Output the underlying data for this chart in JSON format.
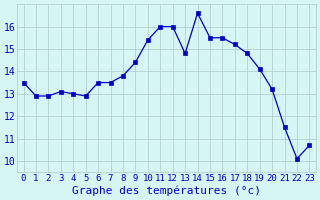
{
  "x": [
    0,
    1,
    2,
    3,
    4,
    5,
    6,
    7,
    8,
    9,
    10,
    11,
    12,
    13,
    14,
    15,
    16,
    17,
    18,
    19,
    20,
    21,
    22,
    23
  ],
  "y": [
    13.5,
    12.9,
    12.9,
    13.1,
    13.0,
    12.9,
    13.5,
    13.5,
    13.8,
    14.4,
    15.4,
    16.0,
    16.0,
    14.8,
    16.6,
    15.5,
    15.5,
    15.2,
    14.8,
    14.1,
    13.2,
    11.5,
    10.1,
    10.7
  ],
  "x_ticks": [
    0,
    1,
    2,
    3,
    4,
    5,
    6,
    7,
    8,
    9,
    10,
    11,
    12,
    13,
    14,
    15,
    16,
    17,
    18,
    19,
    20,
    21,
    22,
    23
  ],
  "x_tick_labels": [
    "0",
    "1",
    "2",
    "3",
    "4",
    "5",
    "6",
    "7",
    "8",
    "9",
    "10",
    "11",
    "12",
    "13",
    "14",
    "15",
    "16",
    "17",
    "18",
    "19",
    "20",
    "21",
    "22",
    "23"
  ],
  "y_ticks": [
    10,
    11,
    12,
    13,
    14,
    15,
    16
  ],
  "xlim": [
    -0.5,
    23.5
  ],
  "ylim": [
    9.5,
    17.0
  ],
  "xlabel": "Graphe des températures (°c)",
  "line_color": "#0000cc",
  "marker_color": "#0000cc",
  "bg_color": "#d6f5f5",
  "grid_color": "#b0c8c8",
  "axis_label_color": "#0000cc",
  "tick_label_color": "#0000cc",
  "xlabel_fontsize": 8,
  "ytick_fontsize": 7,
  "xtick_fontsize": 6.5
}
